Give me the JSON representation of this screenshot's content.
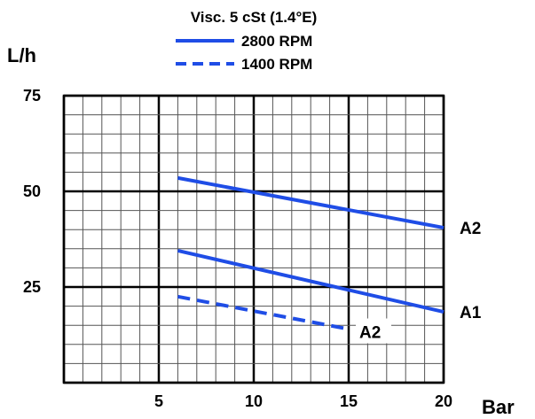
{
  "chart_data": {
    "type": "line",
    "legend_title": "Visc. 5 cSt (1.4°E)",
    "legend": [
      {
        "label": "2800 RPM",
        "style": "solid"
      },
      {
        "label": "1400 RPM",
        "style": "dashed"
      }
    ],
    "ylabel": "L/h",
    "xlabel": "Bar",
    "xlim": [
      0,
      20
    ],
    "ylim": [
      0,
      75
    ],
    "x_ticks": [
      5,
      10,
      15,
      20
    ],
    "y_ticks": [
      25,
      50,
      75
    ],
    "minor_grid_x": 1,
    "minor_grid_y": 5,
    "grid": true,
    "legend_position": "top-center",
    "series": [
      {
        "label": "A2",
        "rpm": "2800 RPM",
        "style": "solid",
        "x": [
          6,
          20
        ],
        "y": [
          53.5,
          40.5
        ]
      },
      {
        "label": "A1",
        "rpm": "2800 RPM",
        "style": "solid",
        "x": [
          6,
          20
        ],
        "y": [
          34.5,
          18.5
        ]
      },
      {
        "label": "A2",
        "rpm": "1400 RPM",
        "style": "dashed",
        "x": [
          6,
          15
        ],
        "y": [
          22.5,
          14
        ]
      }
    ],
    "colors": {
      "line": "#1f4de6",
      "grid_minor": "#555555",
      "grid_major": "#000000"
    }
  }
}
